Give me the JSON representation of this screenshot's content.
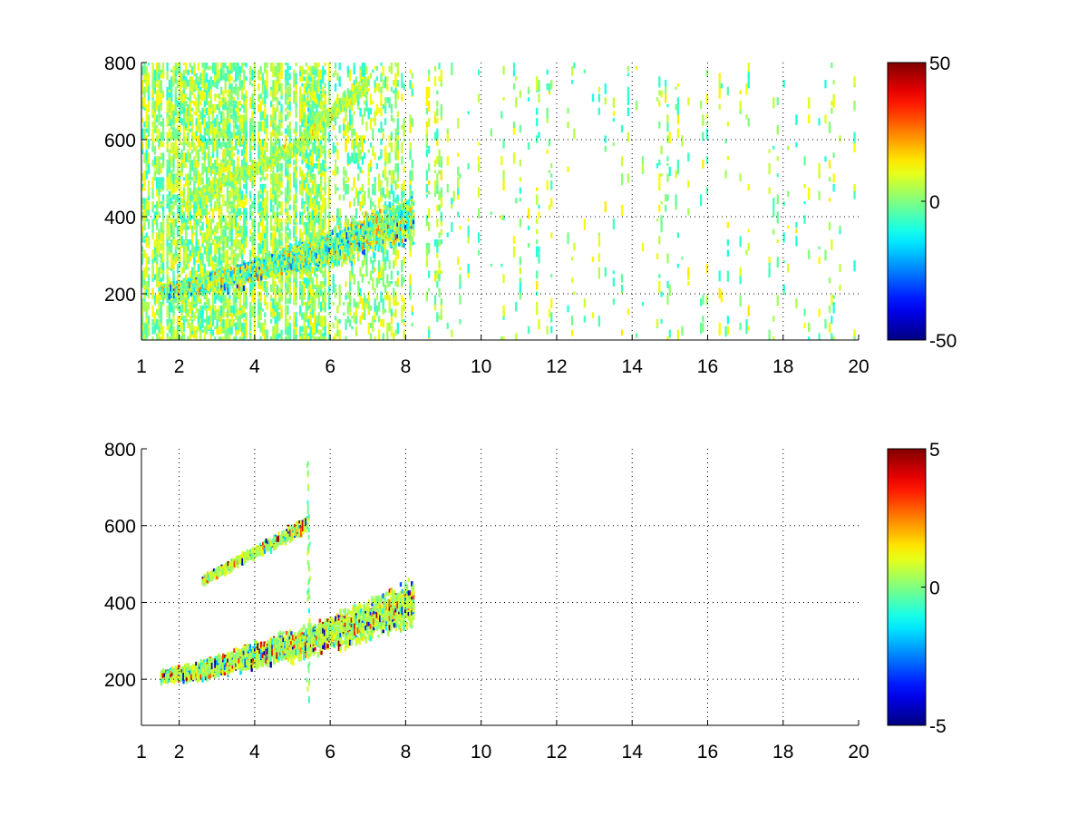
{
  "chart_data": [
    {
      "type": "heatmap",
      "title": "",
      "xlabel": "",
      "ylabel": "",
      "xlim": [
        1,
        20
      ],
      "ylim": [
        80,
        800
      ],
      "xticks": [
        1,
        2,
        4,
        6,
        8,
        10,
        12,
        14,
        16,
        18,
        20
      ],
      "yticks": [
        200,
        400,
        600,
        800
      ],
      "xtick_labels": [
        "1",
        "2",
        "4",
        "6",
        "8",
        "10",
        "12",
        "14",
        "16",
        "18",
        "20"
      ],
      "ytick_labels": [
        "200",
        "400",
        "600",
        "800"
      ],
      "grid": true,
      "colormap": "jet",
      "clim": [
        -50,
        50
      ],
      "colorbar_ticks": [
        -50,
        0,
        50
      ],
      "colorbar_tick_labels": [
        "-50",
        "0",
        "50"
      ],
      "features": [
        {
          "name": "lower ridge",
          "points": [
            [
              1.5,
              210
            ],
            [
              2.5,
              225
            ],
            [
              3.5,
              250
            ],
            [
              4.5,
              280
            ],
            [
              5.5,
              305
            ],
            [
              6.5,
              340
            ],
            [
              7.5,
              380
            ],
            [
              8.2,
              400
            ]
          ],
          "value_range": [
            -50,
            50
          ]
        },
        {
          "name": "upper ridge",
          "points": [
            [
              2.2,
              450
            ],
            [
              3.0,
              490
            ],
            [
              4.0,
              530
            ],
            [
              5.0,
              580
            ],
            [
              5.7,
              640
            ],
            [
              6.3,
              700
            ],
            [
              7.0,
              750
            ]
          ],
          "value_range": [
            -15,
            25
          ]
        }
      ],
      "background_noise": {
        "x_range": [
          1,
          20
        ],
        "y_range": [
          80,
          800
        ],
        "value_range": [
          -10,
          15
        ]
      }
    },
    {
      "type": "heatmap",
      "title": "",
      "xlabel": "",
      "ylabel": "",
      "xlim": [
        1,
        20
      ],
      "ylim": [
        80,
        800
      ],
      "xticks": [
        1,
        2,
        4,
        6,
        8,
        10,
        12,
        14,
        16,
        18,
        20
      ],
      "yticks": [
        200,
        400,
        600,
        800
      ],
      "xtick_labels": [
        "1",
        "2",
        "4",
        "6",
        "8",
        "10",
        "12",
        "14",
        "16",
        "18",
        "20"
      ],
      "ytick_labels": [
        "200",
        "400",
        "600",
        "800"
      ],
      "grid": true,
      "colormap": "jet",
      "clim": [
        -5,
        5
      ],
      "colorbar_ticks": [
        -5,
        0,
        5
      ],
      "colorbar_tick_labels": [
        "-5",
        "0",
        "5"
      ],
      "features": [
        {
          "name": "lower ridge",
          "points": [
            [
              1.5,
              210
            ],
            [
              2.5,
              225
            ],
            [
              3.5,
              250
            ],
            [
              4.5,
              280
            ],
            [
              5.5,
              305
            ],
            [
              6.5,
              340
            ],
            [
              7.5,
              380
            ],
            [
              8.2,
              400
            ]
          ],
          "value_range": [
            -5,
            5
          ]
        },
        {
          "name": "upper ridge",
          "points": [
            [
              2.6,
              460
            ],
            [
              3.5,
              510
            ],
            [
              4.5,
              560
            ],
            [
              5.4,
              610
            ]
          ],
          "value_range": [
            -5,
            5
          ]
        }
      ],
      "background_noise": null
    }
  ]
}
